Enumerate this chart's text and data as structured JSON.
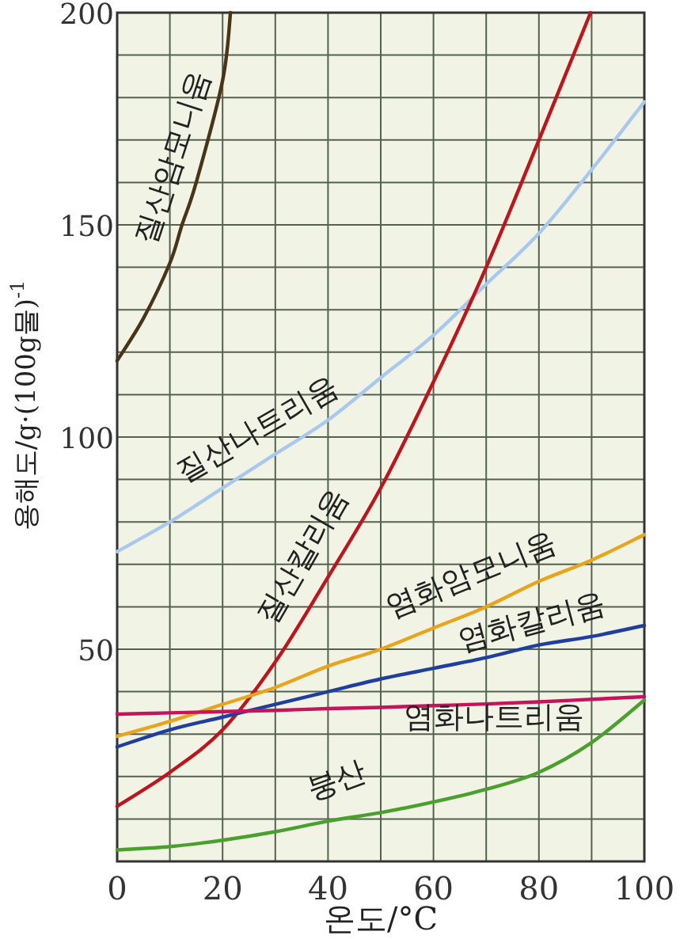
{
  "chart_data": {
    "type": "line",
    "xlabel": "온도/°C",
    "ylabel": "용해도/g·(100g물)$^{-1}$",
    "xlim": [
      0,
      100
    ],
    "ylim": [
      0,
      200
    ],
    "xticks": [
      0,
      20,
      40,
      60,
      80,
      100
    ],
    "yticks": [
      50,
      100,
      150,
      200
    ],
    "grid": true,
    "x": [
      0,
      10,
      20,
      30,
      40,
      50,
      60,
      70,
      80,
      90,
      100
    ],
    "series": [
      {
        "name": "질산암모니움",
        "color": "#4a3418",
        "x": [
          0,
          5,
          10,
          12.3,
          15,
          20,
          21.5
        ],
        "values": [
          118,
          128,
          141,
          150,
          160,
          184,
          200
        ]
      },
      {
        "name": "질산나트리움",
        "color": "#a9c8ef",
        "values": [
          73,
          80,
          88,
          96,
          104,
          114,
          124,
          136,
          148,
          163,
          179
        ]
      },
      {
        "name": "질산칼리움",
        "color": "#c0141c",
        "x": [
          0,
          10,
          20,
          30,
          40,
          50,
          60,
          70,
          80,
          89.8
        ],
        "values": [
          13,
          21,
          31,
          47,
          67,
          88,
          113,
          140,
          170,
          200
        ]
      },
      {
        "name": "염화암모니움",
        "color": "#e8a51c",
        "values": [
          29.5,
          33,
          37,
          41,
          46,
          50,
          55,
          60,
          66,
          71,
          77
        ]
      },
      {
        "name": "염화칼리움",
        "color": "#1f3f9f",
        "values": [
          27,
          31,
          34,
          37,
          40,
          43,
          45.5,
          48,
          51,
          53,
          55.6
        ]
      },
      {
        "name": "염화나트리움",
        "color": "#c4145c",
        "values": [
          34.7,
          35,
          35.3,
          35.6,
          36,
          36.3,
          36.7,
          37.1,
          37.6,
          38.2,
          38.8
        ]
      },
      {
        "name": "붕산",
        "color": "#4aa02c",
        "values": [
          2.7,
          3.5,
          5,
          7,
          9.5,
          11.5,
          14,
          17,
          21,
          28,
          38
        ]
      }
    ]
  }
}
